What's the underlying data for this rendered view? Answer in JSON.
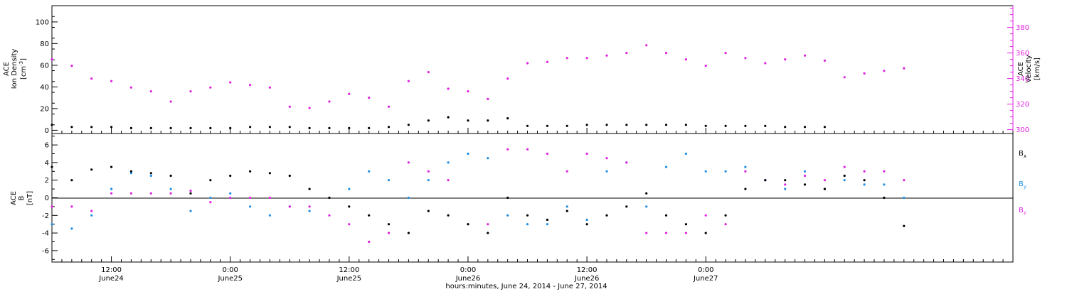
{
  "colors": {
    "density": "#000000",
    "velocity": "#e020e0",
    "bx": "#000000",
    "by": "#1f8fe6",
    "bz": "#e020e0"
  },
  "labels": {
    "top_ylabel_line1": "ACE",
    "top_ylabel_line2": "Ion Density",
    "top_ylabel_unit": "[cm",
    "top_ylabel_unit_exp": "-3",
    "top_ylabel_unit_end": "]",
    "top_y2label_line1": "ACE",
    "top_y2label_line2": "Velocity",
    "top_y2label_unit": "[km/s]",
    "bottom_ylabel_line1": "ACE",
    "bottom_ylabel_line2": "B",
    "bottom_ylabel_unit": "[nT]",
    "legend_bx": "B",
    "legend_bx_sub": "x",
    "legend_by": "B",
    "legend_by_sub": "y",
    "legend_bz": "B",
    "legend_bz_sub": "z",
    "xlabel": "hours:minutes, June 24, 2014 - June 27, 2014"
  },
  "chart_data": {
    "type": "scatter",
    "x_axis": {
      "range_hours_from_start": [
        0,
        97
      ],
      "tick_labels": [
        {
          "time": "12:00",
          "date": "June24"
        },
        {
          "time": "0:00",
          "date": "June25"
        },
        {
          "time": "12:00",
          "date": "June25"
        },
        {
          "time": "0:00",
          "date": "June26"
        },
        {
          "time": "12:00",
          "date": "June26"
        },
        {
          "time": "0:00",
          "date": "June27"
        }
      ]
    },
    "panels": [
      {
        "ylim": [
          -3,
          115
        ],
        "yticks": [
          "0",
          "20",
          "40",
          "60",
          "80",
          "100"
        ],
        "y2lim": [
          297,
          397
        ],
        "y2ticks": [
          "300",
          "320",
          "340",
          "360",
          "380"
        ],
        "series": [
          {
            "name": "Ion Density",
            "axis": "left",
            "points": [
              [
                0,
                5
              ],
              [
                2,
                3
              ],
              [
                4,
                3
              ],
              [
                6,
                3
              ],
              [
                8,
                2
              ],
              [
                10,
                2
              ],
              [
                12,
                2
              ],
              [
                14,
                2
              ],
              [
                16,
                2
              ],
              [
                18,
                2
              ],
              [
                20,
                3
              ],
              [
                22,
                3
              ],
              [
                24,
                3
              ],
              [
                26,
                2
              ],
              [
                28,
                2
              ],
              [
                30,
                2
              ],
              [
                32,
                2
              ],
              [
                34,
                3
              ],
              [
                36,
                5
              ],
              [
                38,
                9
              ],
              [
                40,
                12
              ],
              [
                42,
                9
              ],
              [
                44,
                9
              ],
              [
                46,
                11
              ],
              [
                48,
                4
              ],
              [
                50,
                4
              ],
              [
                52,
                4
              ],
              [
                54,
                5
              ],
              [
                56,
                5
              ],
              [
                58,
                5
              ],
              [
                60,
                5
              ],
              [
                62,
                5
              ],
              [
                64,
                5
              ],
              [
                66,
                4
              ],
              [
                68,
                4
              ],
              [
                70,
                4
              ],
              [
                72,
                4
              ],
              [
                74,
                3
              ],
              [
                76,
                3
              ],
              [
                78,
                3
              ]
            ]
          },
          {
            "name": "Velocity",
            "axis": "right",
            "points": [
              [
                0,
                355
              ],
              [
                2,
                350
              ],
              [
                4,
                340
              ],
              [
                6,
                338
              ],
              [
                8,
                333
              ],
              [
                10,
                330
              ],
              [
                12,
                322
              ],
              [
                14,
                330
              ],
              [
                16,
                333
              ],
              [
                18,
                337
              ],
              [
                20,
                335
              ],
              [
                22,
                333
              ],
              [
                24,
                318
              ],
              [
                26,
                317
              ],
              [
                28,
                322
              ],
              [
                30,
                328
              ],
              [
                32,
                325
              ],
              [
                34,
                318
              ],
              [
                36,
                338
              ],
              [
                38,
                345
              ],
              [
                40,
                332
              ],
              [
                42,
                330
              ],
              [
                44,
                324
              ],
              [
                46,
                340
              ],
              [
                48,
                352
              ],
              [
                50,
                353
              ],
              [
                52,
                356
              ],
              [
                54,
                356
              ],
              [
                56,
                358
              ],
              [
                58,
                360
              ],
              [
                60,
                366
              ],
              [
                62,
                360
              ],
              [
                64,
                355
              ],
              [
                66,
                350
              ],
              [
                68,
                360
              ],
              [
                70,
                356
              ],
              [
                72,
                352
              ],
              [
                74,
                355
              ],
              [
                76,
                358
              ],
              [
                78,
                354
              ],
              [
                80,
                341
              ],
              [
                82,
                344
              ],
              [
                84,
                346
              ],
              [
                86,
                348
              ]
            ]
          }
        ]
      },
      {
        "ylim": [
          -7.3,
          7.3
        ],
        "yticks": [
          "-6",
          "-4",
          "-2",
          "0",
          "2",
          "4",
          "6"
        ],
        "series": [
          {
            "name": "Bx",
            "points": [
              [
                0,
                3.5
              ],
              [
                2,
                2
              ],
              [
                4,
                3.2
              ],
              [
                6,
                3.5
              ],
              [
                8,
                3
              ],
              [
                10,
                2.8
              ],
              [
                12,
                2.5
              ],
              [
                14,
                0.5
              ],
              [
                16,
                2
              ],
              [
                18,
                2.5
              ],
              [
                20,
                3
              ],
              [
                22,
                2.8
              ],
              [
                24,
                2.5
              ],
              [
                26,
                1
              ],
              [
                28,
                0
              ],
              [
                30,
                -1
              ],
              [
                32,
                -2
              ],
              [
                34,
                -3
              ],
              [
                36,
                -4
              ],
              [
                38,
                -1.5
              ],
              [
                40,
                -2
              ],
              [
                42,
                -3
              ],
              [
                44,
                -4
              ],
              [
                46,
                0
              ],
              [
                48,
                -2
              ],
              [
                50,
                -2.5
              ],
              [
                52,
                -1.5
              ],
              [
                54,
                -3
              ],
              [
                56,
                -2
              ],
              [
                58,
                -1
              ],
              [
                60,
                0.5
              ],
              [
                62,
                -2
              ],
              [
                64,
                -3
              ],
              [
                66,
                -4
              ],
              [
                68,
                -2
              ],
              [
                70,
                1
              ],
              [
                72,
                2
              ],
              [
                74,
                2
              ],
              [
                76,
                1.5
              ],
              [
                78,
                1
              ],
              [
                80,
                2.5
              ],
              [
                82,
                2
              ],
              [
                84,
                0
              ],
              [
                86,
                -3.2
              ]
            ]
          },
          {
            "name": "By",
            "points": [
              [
                0,
                -3
              ],
              [
                2,
                -3.5
              ],
              [
                4,
                -2
              ],
              [
                6,
                1
              ],
              [
                8,
                2.8
              ],
              [
                10,
                2.5
              ],
              [
                12,
                1
              ],
              [
                14,
                -1.5
              ],
              [
                16,
                0
              ],
              [
                18,
                0.5
              ],
              [
                20,
                -1
              ],
              [
                22,
                -2
              ],
              [
                24,
                -1
              ],
              [
                26,
                -1.5
              ],
              [
                28,
                0
              ],
              [
                30,
                1
              ],
              [
                32,
                3
              ],
              [
                34,
                2
              ],
              [
                36,
                0
              ],
              [
                38,
                2
              ],
              [
                40,
                4
              ],
              [
                42,
                5
              ],
              [
                44,
                4.5
              ],
              [
                46,
                -2
              ],
              [
                48,
                -3
              ],
              [
                50,
                -3
              ],
              [
                52,
                -1
              ],
              [
                54,
                -2.5
              ],
              [
                56,
                3
              ],
              [
                58,
                4
              ],
              [
                60,
                -1
              ],
              [
                62,
                3.5
              ],
              [
                64,
                5
              ],
              [
                66,
                3
              ],
              [
                68,
                3
              ],
              [
                70,
                3.5
              ],
              [
                72,
                2
              ],
              [
                74,
                1
              ],
              [
                76,
                3
              ],
              [
                78,
                1
              ],
              [
                80,
                2
              ],
              [
                82,
                1.5
              ],
              [
                84,
                1.5
              ],
              [
                86,
                0
              ]
            ]
          },
          {
            "name": "Bz",
            "points": [
              [
                0,
                -1
              ],
              [
                2,
                -1
              ],
              [
                4,
                -1.5
              ],
              [
                6,
                0.5
              ],
              [
                8,
                0.5
              ],
              [
                10,
                0.5
              ],
              [
                12,
                0.5
              ],
              [
                14,
                0.8
              ],
              [
                16,
                -0.5
              ],
              [
                18,
                0
              ],
              [
                20,
                0
              ],
              [
                22,
                0
              ],
              [
                24,
                -1
              ],
              [
                26,
                -1
              ],
              [
                28,
                -2
              ],
              [
                30,
                -3
              ],
              [
                32,
                -5
              ],
              [
                34,
                -4
              ],
              [
                36,
                4
              ],
              [
                38,
                3
              ],
              [
                40,
                2
              ],
              [
                42,
                -3
              ],
              [
                44,
                -3
              ],
              [
                46,
                5.5
              ],
              [
                48,
                5.5
              ],
              [
                50,
                5
              ],
              [
                52,
                3
              ],
              [
                54,
                5
              ],
              [
                56,
                4.5
              ],
              [
                58,
                4
              ],
              [
                60,
                -4
              ],
              [
                62,
                -4
              ],
              [
                64,
                -4
              ],
              [
                66,
                -2
              ],
              [
                68,
                -3
              ],
              [
                70,
                3
              ],
              [
                72,
                2
              ],
              [
                74,
                1.5
              ],
              [
                76,
                2.5
              ],
              [
                78,
                2
              ],
              [
                80,
                3.5
              ],
              [
                82,
                3
              ],
              [
                84,
                3
              ],
              [
                86,
                2
              ]
            ]
          }
        ]
      }
    ]
  }
}
